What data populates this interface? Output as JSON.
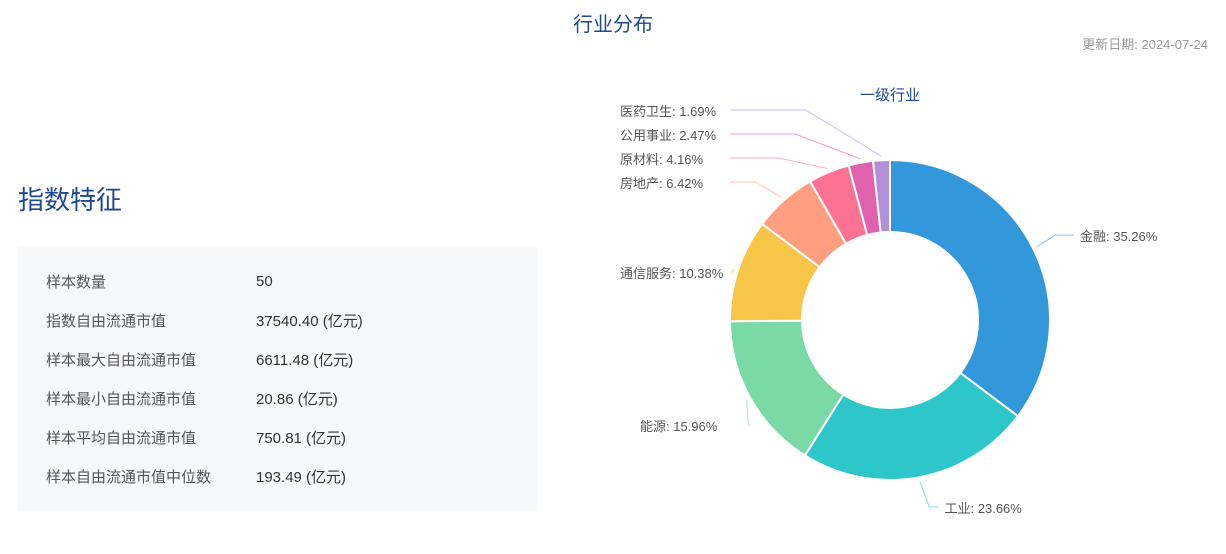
{
  "header": {
    "main_title": "行业分布",
    "update_label": "更新日期: 2024-07-24"
  },
  "left": {
    "section_title": "指数特征",
    "stats": [
      {
        "label": "样本数量",
        "value": "50"
      },
      {
        "label": "指数自由流通市值",
        "value": "37540.40 (亿元)"
      },
      {
        "label": "样本最大自由流通市值",
        "value": "6611.48 (亿元)"
      },
      {
        "label": "样本最小自由流通市值",
        "value": "20.86 (亿元)"
      },
      {
        "label": "样本平均自由流通市值",
        "value": "750.81 (亿元)"
      },
      {
        "label": "样本自由流通市值中位数",
        "value": "193.49 (亿元)"
      }
    ]
  },
  "chart": {
    "title": "一级行业",
    "type": "donut",
    "inner_radius_pct": 0.55,
    "outer_radius_pct": 1.0,
    "background_color": "#ffffff",
    "label_color": "#555555",
    "label_fontsize": 13,
    "title_color": "#1e4a8f",
    "title_fontsize": 15,
    "slices": [
      {
        "name": "金融",
        "value": 35.26,
        "color": "#3398db",
        "label": "金融: 35.26%"
      },
      {
        "name": "工业",
        "value": 23.66,
        "color": "#2ec7c9",
        "label": "工业: 23.66%"
      },
      {
        "name": "能源",
        "value": 15.96,
        "color": "#7bd9a5",
        "label": "能源: 15.96%"
      },
      {
        "name": "通信服务",
        "value": 10.38,
        "color": "#f7c548",
        "label": "通信服务: 10.38%"
      },
      {
        "name": "房地产",
        "value": 6.42,
        "color": "#ff9f7f",
        "label": "房地产: 6.42%"
      },
      {
        "name": "原材料",
        "value": 4.16,
        "color": "#fb7293",
        "label": "原材料: 4.16%"
      },
      {
        "name": "公用事业",
        "value": 2.47,
        "color": "#e062ae",
        "label": "公用事业: 2.47%"
      },
      {
        "name": "医药卫生",
        "value": 1.69,
        "color": "#b38fda",
        "label": "医药卫生: 1.69%"
      }
    ]
  }
}
